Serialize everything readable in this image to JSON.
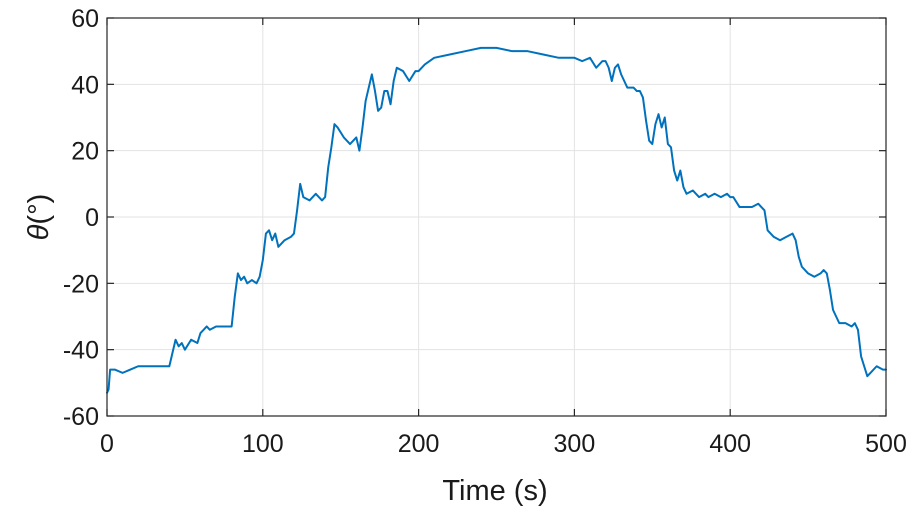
{
  "chart_data": {
    "type": "line",
    "title": "",
    "xlabel": "Time (s)",
    "ylabel_symbol": "θ",
    "ylabel_unit": "(°)",
    "xlim": [
      0,
      500
    ],
    "ylim": [
      -60,
      60
    ],
    "xticks": [
      0,
      100,
      200,
      300,
      400,
      500
    ],
    "yticks": [
      -60,
      -40,
      -20,
      0,
      20,
      40,
      60
    ],
    "grid": true,
    "legend": "none",
    "series": [
      {
        "color": "#0072BD",
        "x": [
          0,
          1,
          2,
          5,
          10,
          15,
          20,
          25,
          30,
          35,
          40,
          42,
          44,
          46,
          48,
          50,
          54,
          58,
          60,
          62,
          64,
          66,
          70,
          75,
          80,
          82,
          84,
          86,
          88,
          90,
          93,
          96,
          98,
          100,
          102,
          104,
          106,
          108,
          110,
          114,
          118,
          120,
          122,
          124,
          126,
          130,
          134,
          138,
          140,
          142,
          144,
          146,
          148,
          152,
          156,
          160,
          162,
          164,
          166,
          170,
          172,
          174,
          176,
          178,
          180,
          182,
          184,
          186,
          190,
          194,
          198,
          200,
          204,
          210,
          220,
          230,
          240,
          250,
          260,
          270,
          280,
          290,
          300,
          305,
          310,
          314,
          318,
          320,
          322,
          324,
          326,
          328,
          330,
          334,
          338,
          340,
          342,
          344,
          346,
          348,
          350,
          352,
          354,
          356,
          358,
          360,
          362,
          364,
          366,
          368,
          370,
          372,
          376,
          380,
          384,
          386,
          390,
          394,
          398,
          400,
          402,
          406,
          410,
          414,
          418,
          420,
          422,
          424,
          428,
          432,
          436,
          440,
          442,
          444,
          446,
          448,
          450,
          454,
          458,
          460,
          462,
          464,
          466,
          470,
          474,
          478,
          480,
          482,
          484,
          486,
          488,
          490,
          494,
          498,
          500
        ],
        "y": [
          -53,
          -52,
          -46,
          -46,
          -47,
          -46,
          -45,
          -45,
          -45,
          -45,
          -45,
          -41,
          -37,
          -39,
          -38,
          -40,
          -37,
          -38,
          -35,
          -34,
          -33,
          -34,
          -33,
          -33,
          -33,
          -24,
          -17,
          -19,
          -18,
          -20,
          -19,
          -20,
          -18,
          -13,
          -5,
          -4,
          -7,
          -5,
          -9,
          -7,
          -6,
          -5,
          2,
          10,
          6,
          5,
          7,
          5,
          6,
          15,
          21,
          28,
          27,
          24,
          22,
          24,
          20,
          27,
          35,
          43,
          38,
          32,
          33,
          38,
          38,
          34,
          41,
          45,
          44,
          41,
          44,
          44,
          46,
          48,
          49,
          50,
          51,
          51,
          50,
          50,
          49,
          48,
          48,
          47,
          48,
          45,
          47,
          47,
          45,
          41,
          45,
          46,
          43,
          39,
          39,
          38,
          38,
          36,
          29,
          23,
          22,
          28,
          31,
          27,
          30,
          22,
          21,
          14,
          11,
          14,
          9,
          7,
          8,
          6,
          7,
          6,
          7,
          6,
          7,
          6,
          6,
          3,
          3,
          3,
          4,
          3,
          2,
          -4,
          -6,
          -7,
          -6,
          -5,
          -7,
          -12,
          -15,
          -16,
          -17,
          -18,
          -17,
          -16,
          -17,
          -22,
          -28,
          -32,
          -32,
          -33,
          -32,
          -34,
          -42,
          -45,
          -48,
          -47,
          -45,
          -46,
          -46
        ]
      }
    ]
  }
}
